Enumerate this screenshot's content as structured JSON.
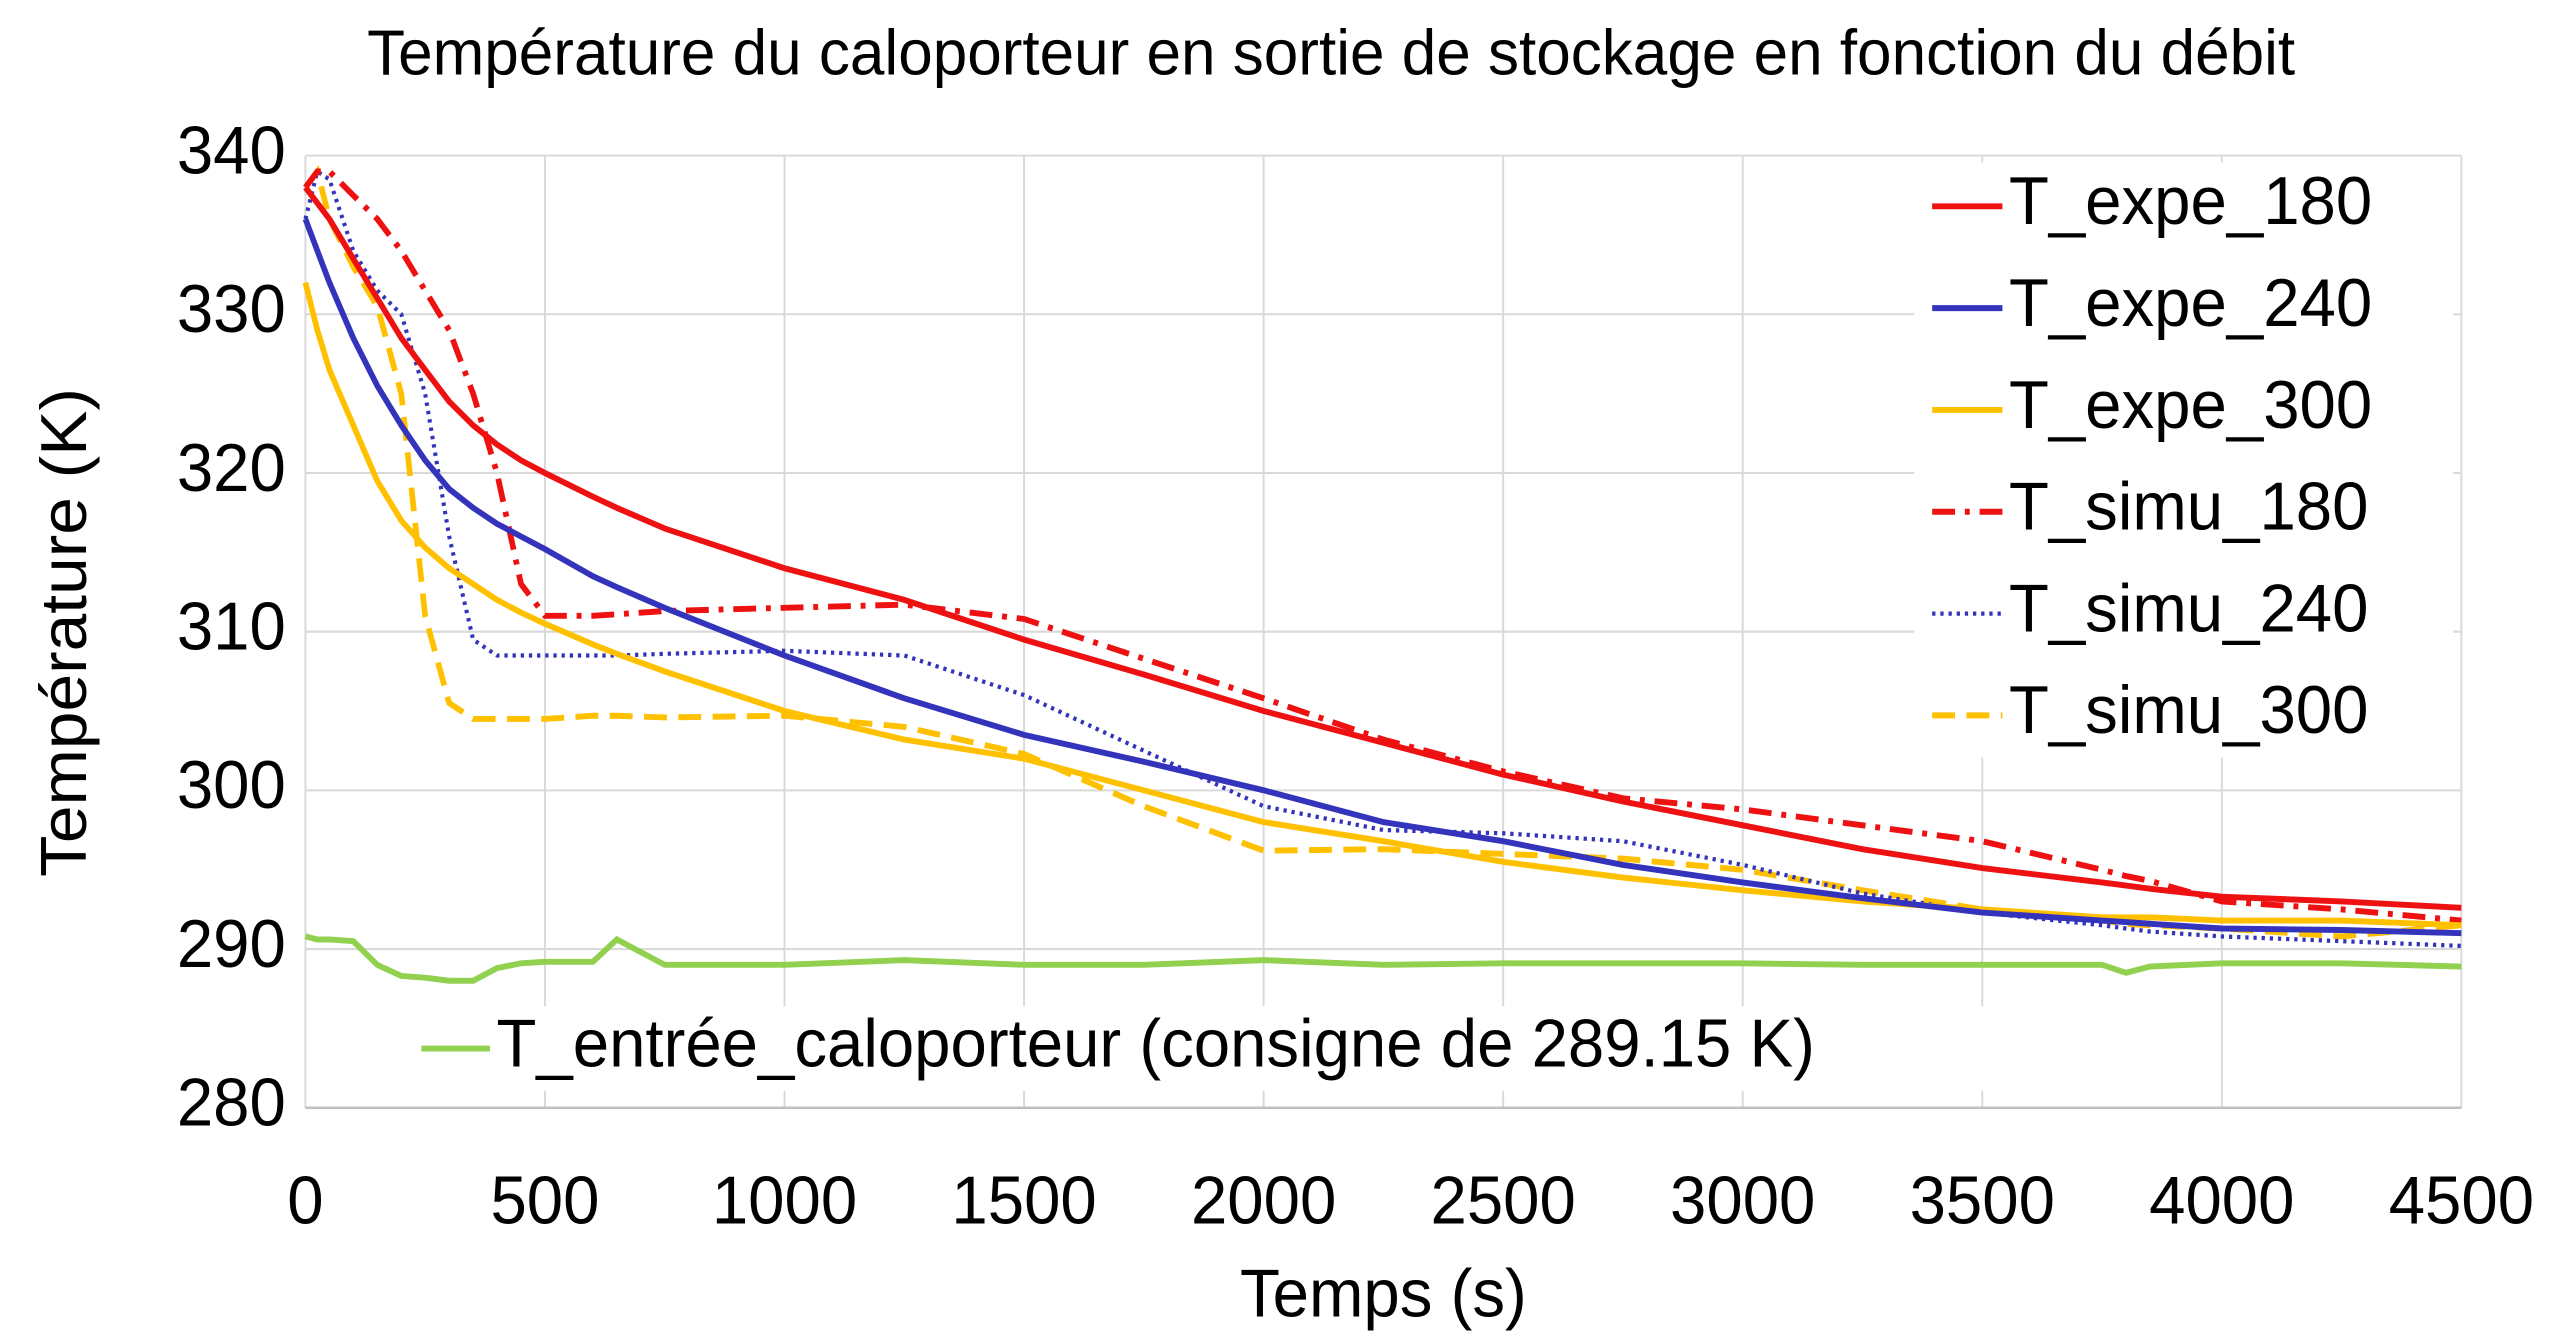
{
  "chart_data": {
    "type": "line",
    "title": "Température du caloporteur en sortie de stockage en fonction du débit",
    "x_label": "Temps (s)",
    "y_label": "Température (K)",
    "xlim": [
      0,
      4500
    ],
    "ylim": [
      280,
      340
    ],
    "xticks": [
      0,
      500,
      1000,
      1500,
      2000,
      2500,
      3000,
      3500,
      4000,
      4500
    ],
    "yticks": [
      280,
      290,
      300,
      310,
      320,
      330,
      340
    ],
    "grid": true,
    "legend": "upper right",
    "x": [
      0,
      25,
      50,
      100,
      150,
      200,
      250,
      300,
      350,
      400,
      450,
      500,
      600,
      650,
      750,
      1000,
      1250,
      1500,
      1750,
      2000,
      2250,
      2500,
      2750,
      3000,
      3250,
      3500,
      3750,
      3800,
      3850,
      4000,
      4250,
      4500
    ],
    "series": [
      {
        "name": "T_expe_180",
        "color": "#ee1111",
        "dash": "solid",
        "values": [
          338,
          337,
          336,
          333.5,
          331,
          328.5,
          326.5,
          324.5,
          323,
          321.8,
          320.8,
          320,
          318.5,
          317.8,
          316.5,
          314,
          312,
          309.5,
          307.3,
          305,
          303,
          301,
          299.3,
          297.8,
          296.3,
          295.1,
          294.2,
          294,
          293.8,
          293.3,
          293,
          292.6
        ]
      },
      {
        "name": "T_expe_240",
        "color": "#3333bb",
        "dash": "solid",
        "values": [
          336,
          334,
          332,
          328.5,
          325.5,
          323,
          320.8,
          319,
          317.8,
          316.8,
          316,
          315.2,
          313.5,
          312.8,
          311.5,
          308.5,
          305.8,
          303.5,
          301.8,
          300,
          298,
          296.8,
          295.3,
          294.2,
          293.2,
          292.3,
          291.8,
          291.7,
          291.6,
          291.3,
          291.2,
          291
        ]
      },
      {
        "name": "T_expe_300",
        "color": "#ffc000",
        "dash": "solid",
        "values": [
          332,
          329,
          326.5,
          323,
          319.5,
          317,
          315.3,
          314,
          313,
          312,
          311.2,
          310.5,
          309.2,
          308.6,
          307.5,
          305,
          303.2,
          302,
          300,
          298,
          296.8,
          295.5,
          294.5,
          293.7,
          293,
          292.5,
          292,
          292,
          292,
          291.8,
          291.8,
          291.5
        ]
      },
      {
        "name": "T_simu_180",
        "color": "#ee1111",
        "dash": "dashdot",
        "values": [
          338,
          339,
          339,
          337.5,
          336,
          334,
          331.5,
          329,
          325,
          320,
          313,
          311,
          311,
          311.1,
          311.3,
          311.5,
          311.7,
          310.8,
          308.3,
          305.8,
          303.2,
          301.2,
          299.5,
          298.8,
          297.8,
          296.8,
          295,
          294.6,
          294.3,
          293,
          292.5,
          291.8
        ]
      },
      {
        "name": "T_simu_240",
        "color": "#3333bb",
        "dash": "dotted",
        "values": [
          336,
          339,
          338.5,
          334,
          331.5,
          330,
          325,
          316,
          309.5,
          308.5,
          308.5,
          308.5,
          308.5,
          308.5,
          308.6,
          308.8,
          308.5,
          306,
          302.5,
          299,
          297.5,
          297.3,
          296.8,
          295.3,
          293.5,
          292.3,
          291.5,
          291.3,
          291.1,
          290.8,
          290.5,
          290.2
        ]
      },
      {
        "name": "T_simu_300",
        "color": "#ffc000",
        "dash": "dashed",
        "values": [
          338,
          339,
          336,
          333,
          330.5,
          325,
          311,
          305.5,
          304.5,
          304.5,
          304.5,
          304.5,
          304.7,
          304.7,
          304.6,
          304.7,
          304,
          302.3,
          299,
          296.2,
          296.3,
          296,
          295.7,
          295,
          293.7,
          292.5,
          291.8,
          291.6,
          291.5,
          291.3,
          290.8,
          291.5
        ]
      },
      {
        "name": "T_entrée_caloporteur (consigne de 289.15 K)",
        "color": "#92d050",
        "dash": "solid",
        "values": [
          290.8,
          290.6,
          290.6,
          290.5,
          289,
          288.3,
          288.2,
          288,
          288,
          288.8,
          289.1,
          289.2,
          289.2,
          290.6,
          289,
          289,
          289.3,
          289,
          289,
          289.3,
          289,
          289.1,
          289.1,
          289.1,
          289,
          289,
          289,
          288.5,
          288.9,
          289.1,
          289.1,
          288.9
        ]
      }
    ]
  }
}
